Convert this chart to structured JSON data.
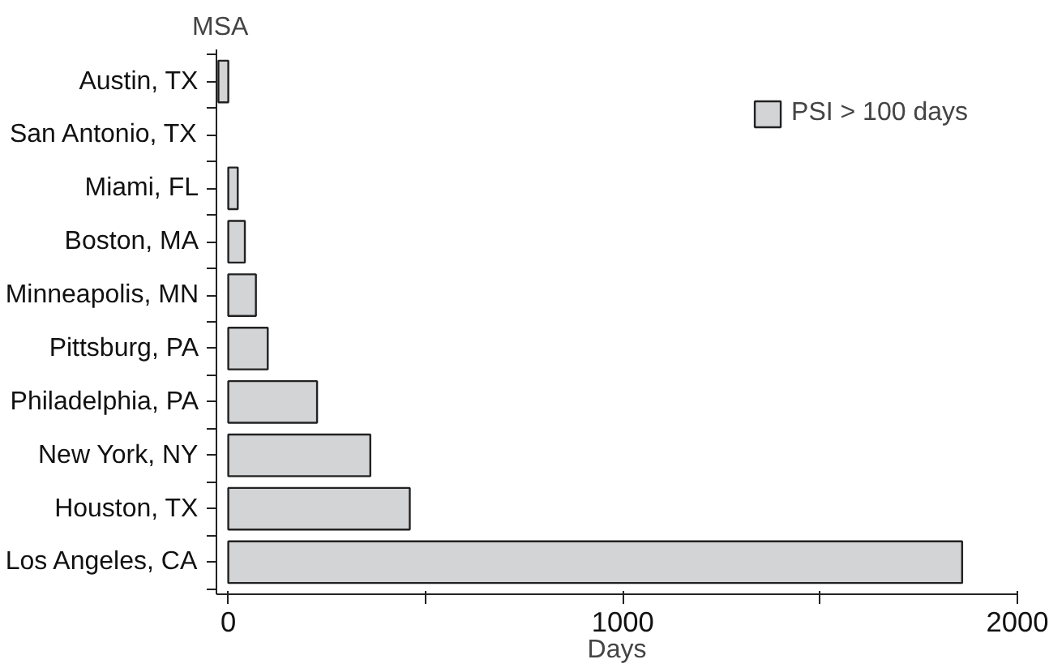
{
  "chart_data": {
    "type": "bar",
    "orientation": "horizontal",
    "ylabel": "MSA",
    "xlabel": "Days",
    "categories": [
      "Austin, TX",
      "San Antonio, TX",
      "Miami, FL",
      "Boston, MA",
      "Minneapolis, MN",
      "Pittsburg, PA",
      "Philadelphia, PA",
      "New York, NY",
      "Houston, TX",
      "Los Angeles, CA"
    ],
    "series": [
      {
        "name": "PSI > 100 days",
        "color": "#d3d4d6",
        "values": [
          -25,
          null,
          24,
          42,
          70,
          100,
          225,
          360,
          460,
          1860
        ]
      }
    ],
    "xlim": [
      -30,
      2000
    ],
    "xticks": [
      0,
      {
        "value": 500,
        "label": null
      },
      1000,
      {
        "value": 1500,
        "label": null
      },
      2000
    ],
    "grid": false,
    "legend": "top right"
  }
}
